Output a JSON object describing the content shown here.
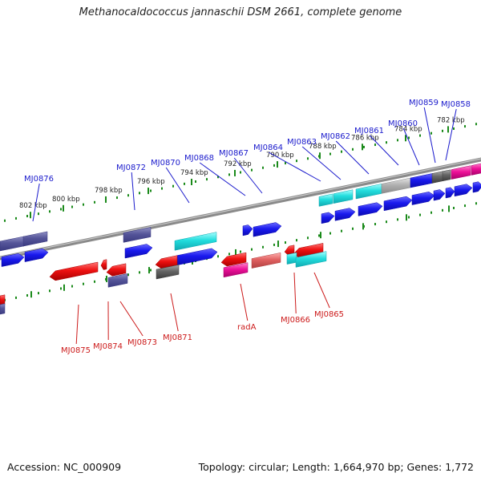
{
  "title": "Methanocaldococcus jannaschii DSM 2661, complete genome",
  "accession": "Accession: NC_000909",
  "stats": "Topology: circular; Length: 1,664,970 bp; Genes: 1,772",
  "colors": {
    "backbone": "#8a8a8a",
    "tick": "#1a8a1a",
    "top_label": "#1a1acc",
    "bottom_label": "#cc1a1a"
  },
  "tick_labels": [
    "802 kbp",
    "800 kbp",
    "798 kbp",
    "796 kbp",
    "794 kbp",
    "792 kbp",
    "790 kbp",
    "788 kbp",
    "786 kbp",
    "784 kbp",
    "782 kbp"
  ],
  "top_gene_labels": [
    "MJ0876",
    "MJ0872",
    "MJ0870",
    "MJ0868",
    "MJ0867",
    "MJ0864",
    "MJ0863",
    "MJ0862",
    "MJ0861",
    "MJ0860",
    "MJ0859",
    "MJ0858"
  ],
  "bottom_gene_labels": [
    "MJ0875",
    "MJ0874",
    "MJ0873",
    "MJ0871",
    "radA",
    "MJ0866",
    "MJ0865"
  ]
}
